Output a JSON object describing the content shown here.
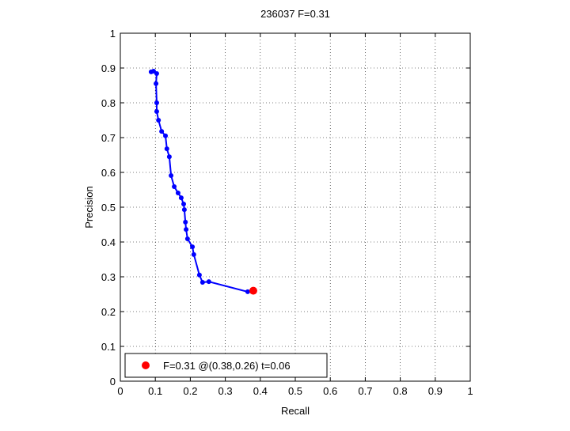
{
  "chart_data": {
    "type": "line",
    "title": "236037 F=0.31",
    "x_label": "Recall",
    "y_label": "Precision",
    "xlim": [
      0,
      1
    ],
    "ylim": [
      0,
      1
    ],
    "xticks": [
      0,
      0.1,
      0.2,
      0.3,
      0.4,
      0.5,
      0.6,
      0.7,
      0.8,
      0.9,
      1
    ],
    "yticks": [
      0,
      0.1,
      0.2,
      0.3,
      0.4,
      0.5,
      0.6,
      0.7,
      0.8,
      0.9,
      1
    ],
    "grid": true,
    "legend": "lower left",
    "series": [
      {
        "color": "#0000ff",
        "x": [
          0.088,
          0.095,
          0.104,
          0.102,
          0.104,
          0.104,
          0.109,
          0.118,
          0.129,
          0.133,
          0.14,
          0.145,
          0.154,
          0.165,
          0.174,
          0.181,
          0.183,
          0.186,
          0.188,
          0.192,
          0.206,
          0.21,
          0.226,
          0.235,
          0.253,
          0.364,
          0.376
        ],
        "values": [
          0.889,
          0.891,
          0.884,
          0.855,
          0.8,
          0.775,
          0.75,
          0.718,
          0.705,
          0.668,
          0.645,
          0.591,
          0.559,
          0.541,
          0.527,
          0.509,
          0.493,
          0.457,
          0.436,
          0.409,
          0.386,
          0.364,
          0.305,
          0.284,
          0.286,
          0.257,
          0.259
        ]
      },
      {
        "name": "F=0.31 @(0.38,0.26) t=0.06",
        "color": "#ff0000",
        "x": [
          0.38
        ],
        "values": [
          0.26
        ]
      }
    ]
  }
}
